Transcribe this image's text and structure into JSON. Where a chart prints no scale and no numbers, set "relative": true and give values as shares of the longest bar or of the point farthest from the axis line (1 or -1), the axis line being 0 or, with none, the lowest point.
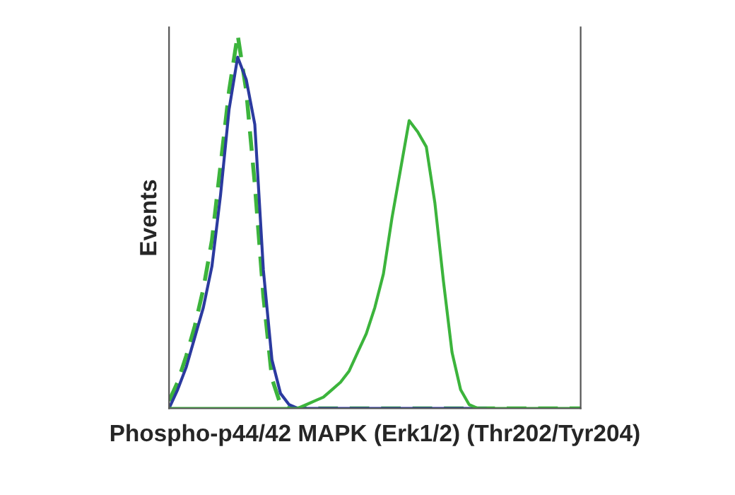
{
  "chart_data": {
    "type": "line",
    "relative": true,
    "ylabel": "Events",
    "xlabel": "Phospho-p44/42 MAPK (Erk1/2) (Thr202/Tyr204)",
    "categories": [
      null,
      null,
      null,
      null,
      null,
      null,
      null,
      null,
      null,
      null,
      null,
      null,
      null,
      null,
      null,
      null,
      null,
      null,
      null,
      null,
      null,
      null,
      null,
      null,
      null,
      null,
      null,
      null,
      null,
      null,
      null,
      null,
      null,
      null,
      null,
      null,
      null,
      null,
      null,
      null,
      null,
      null,
      null,
      null,
      null,
      null,
      null,
      null,
      null
    ],
    "series": [
      {
        "color": "#3cb43c",
        "line_style": "dashed",
        "values": [
          0.02,
          0.07,
          0.14,
          0.22,
          0.32,
          0.45,
          0.65,
          0.85,
          1.0,
          0.85,
          0.6,
          0.3,
          0.08,
          0.01,
          0,
          0,
          0,
          0,
          0,
          0,
          0,
          0,
          0,
          0,
          0,
          0,
          0,
          0,
          0,
          0,
          0,
          0,
          0,
          0,
          0,
          0,
          0,
          0,
          0,
          0,
          0,
          0,
          0,
          0,
          0,
          0,
          0,
          0,
          0
        ]
      },
      {
        "color": "#2b3a9f",
        "line_style": "solid",
        "values": [
          0,
          0.05,
          0.11,
          0.19,
          0.27,
          0.38,
          0.57,
          0.8,
          0.94,
          0.88,
          0.76,
          0.37,
          0.13,
          0.04,
          0.01,
          0,
          0,
          0,
          0,
          0,
          0,
          0,
          0,
          0,
          0,
          0,
          0,
          0,
          0,
          0,
          0,
          0,
          0,
          0,
          0,
          0,
          0,
          0,
          null,
          null,
          null,
          null,
          null,
          null,
          null,
          null,
          null,
          null,
          null
        ]
      },
      {
        "color": "#3cb43c",
        "line_style": "solid",
        "values": [
          0,
          0,
          0,
          0,
          0,
          0,
          0,
          0,
          0,
          0,
          0,
          0,
          0,
          0,
          0,
          0,
          0.01,
          0.02,
          0.03,
          0.05,
          0.07,
          0.1,
          0.15,
          0.2,
          0.27,
          0.36,
          0.51,
          0.64,
          0.77,
          0.74,
          0.7,
          0.55,
          0.34,
          0.15,
          0.05,
          0.01,
          0,
          0,
          0,
          0,
          0,
          0,
          0,
          0,
          0,
          0,
          0,
          0,
          0
        ]
      }
    ],
    "tick_labels": false,
    "legend": false
  }
}
